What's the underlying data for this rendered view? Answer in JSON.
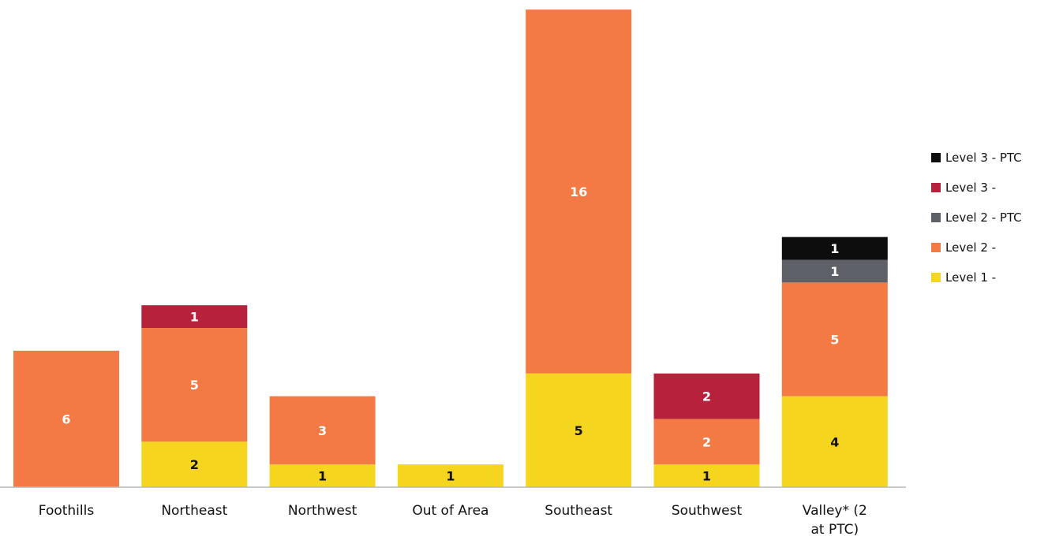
{
  "chart_data": {
    "type": "bar",
    "stacked": true,
    "categories": [
      "Foothills",
      "Northeast",
      "Northwest",
      "Out of Area",
      "Southeast",
      "Southwest",
      "Valley* (2 at PTC)"
    ],
    "series": [
      {
        "name": "Level 1 -",
        "color": "#f5d51e",
        "label_color": "#111111",
        "values": [
          0,
          2,
          1,
          1,
          5,
          1,
          4
        ]
      },
      {
        "name": "Level 2 -",
        "color": "#f47a45",
        "label_color": "#ffffff",
        "values": [
          6,
          5,
          3,
          0,
          16,
          2,
          5
        ]
      },
      {
        "name": "Level 2 - PTC",
        "color": "#5d6066",
        "label_color": "#ffffff",
        "values": [
          0,
          0,
          0,
          0,
          0,
          0,
          1
        ]
      },
      {
        "name": "Level 3 -",
        "color": "#b6213c",
        "label_color": "#ffffff",
        "values": [
          0,
          1,
          0,
          0,
          0,
          2,
          0
        ]
      },
      {
        "name": "Level 3 - PTC",
        "color": "#0d0d0d",
        "label_color": "#ffffff",
        "values": [
          0,
          0,
          0,
          0,
          0,
          0,
          1
        ]
      }
    ],
    "legend": {
      "position": "right",
      "order": [
        "Level 3 - PTC",
        "Level 3 -",
        "Level 2 - PTC",
        "Level 2 -",
        "Level 1 -"
      ]
    },
    "ylim": [
      0,
      21
    ],
    "grid": false,
    "title": "",
    "xlabel": "",
    "ylabel": ""
  }
}
